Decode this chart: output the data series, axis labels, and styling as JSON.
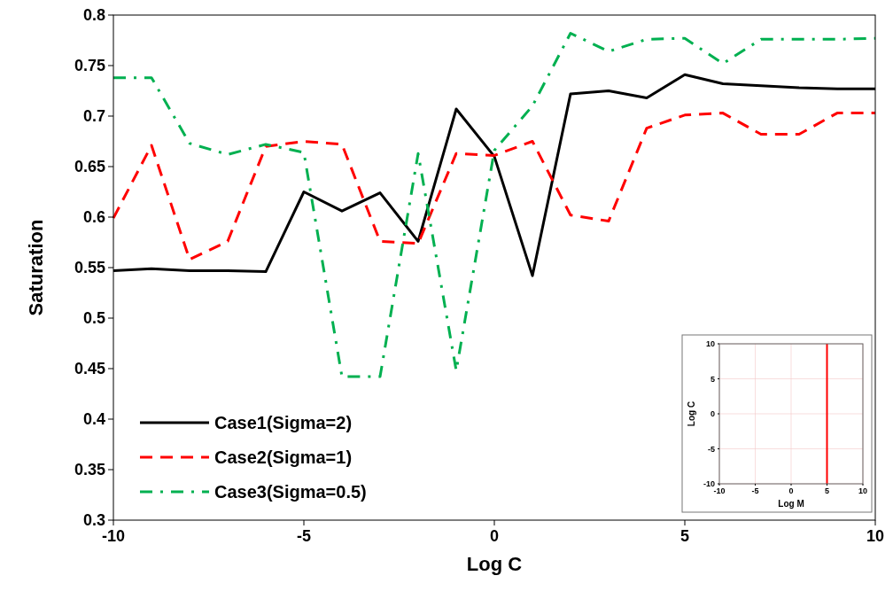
{
  "chart_data": [
    {
      "type": "line",
      "xlabel": "Log C",
      "ylabel": "Saturation",
      "x": [
        -10,
        -9,
        -8,
        -7,
        -6,
        -5,
        -4,
        -3,
        -2,
        -1,
        0,
        1,
        2,
        3,
        4,
        5,
        6,
        7,
        8,
        9,
        10
      ],
      "xlim": [
        -10,
        10
      ],
      "xticks": [
        -10,
        -5,
        0,
        5,
        10
      ],
      "ylim": [
        0.3,
        0.8
      ],
      "yticks": [
        0.3,
        0.35,
        0.4,
        0.45,
        0.5,
        0.55,
        0.6,
        0.65,
        0.7,
        0.75,
        0.8
      ],
      "grid": false,
      "legend": "bottom left",
      "series": [
        {
          "name": "Case1(Sigma=2)",
          "color": "#000000",
          "line_style": "solid",
          "values": [
            0.547,
            0.549,
            0.547,
            0.547,
            0.546,
            0.625,
            0.606,
            0.624,
            0.576,
            0.707,
            0.66,
            0.542,
            0.722,
            0.725,
            0.718,
            0.741,
            0.732,
            0.73,
            0.728,
            0.727,
            0.727
          ]
        },
        {
          "name": "Case2(Sigma=1)",
          "color": "#ff0000",
          "line_style": "dashed",
          "values": [
            0.599,
            0.671,
            0.558,
            0.576,
            0.67,
            0.675,
            0.672,
            0.576,
            0.574,
            0.663,
            0.661,
            0.675,
            0.602,
            0.596,
            0.688,
            0.701,
            0.703,
            0.682,
            0.682,
            0.703,
            0.703
          ]
        },
        {
          "name": "Case3(Sigma=0.5)",
          "color": "#00b050",
          "line_style": "dashdot",
          "values": [
            0.738,
            0.738,
            0.673,
            0.662,
            0.672,
            0.664,
            0.442,
            0.442,
            0.663,
            0.448,
            0.666,
            0.71,
            0.782,
            0.764,
            0.776,
            0.777,
            0.752,
            0.776,
            0.776,
            0.776,
            0.777
          ]
        }
      ]
    },
    {
      "type": "line",
      "xlabel": "Log M",
      "ylabel": "Log C",
      "xlim": [
        -10,
        10
      ],
      "xticks": [
        -10,
        -5,
        0,
        5,
        10
      ],
      "ylim": [
        -10,
        10
      ],
      "yticks": [
        -10,
        -5,
        0,
        5,
        10
      ],
      "grid": true,
      "series": [
        {
          "color": "#ff0000",
          "x": [
            5,
            5
          ],
          "values": [
            -10,
            10
          ]
        }
      ]
    }
  ]
}
